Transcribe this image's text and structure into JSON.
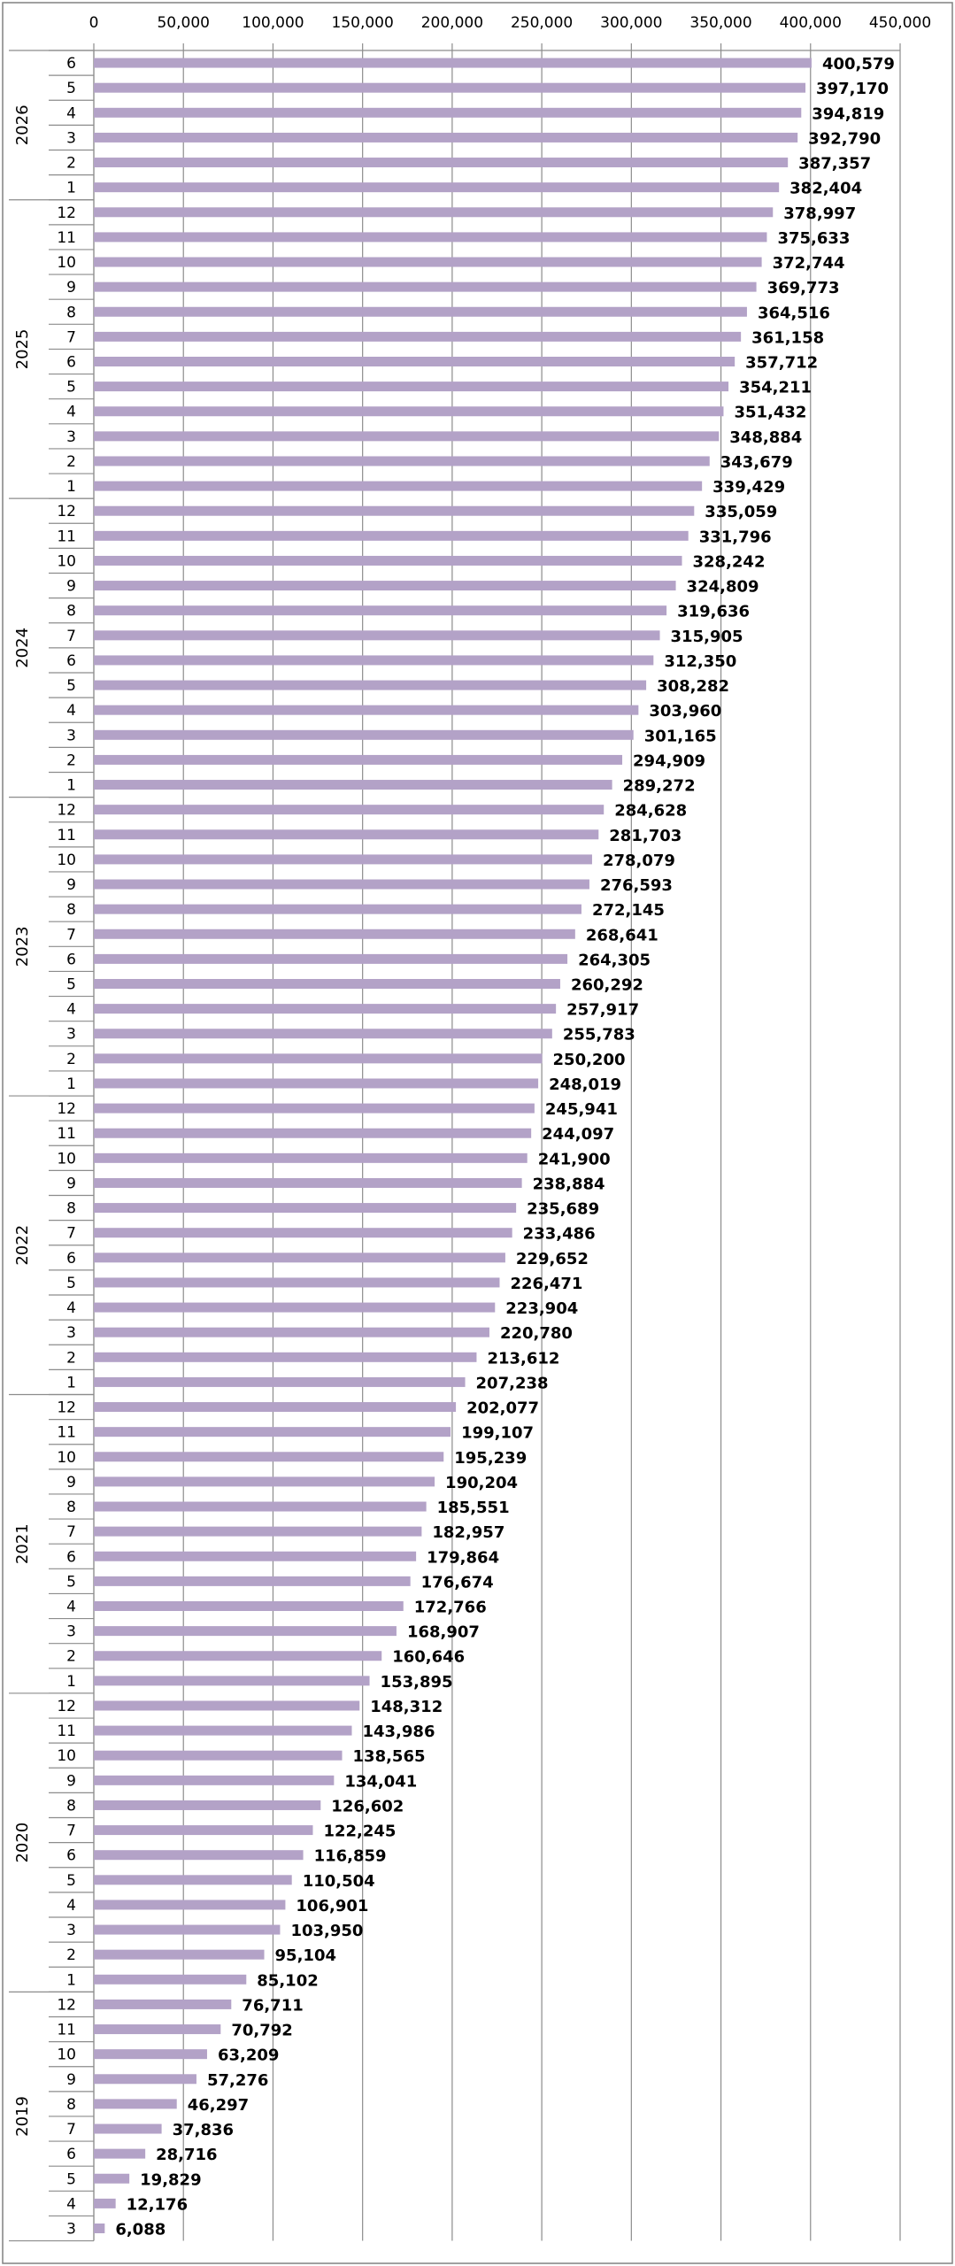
{
  "chart_data": {
    "type": "bar",
    "orientation": "horizontal",
    "title": "",
    "xlabel": "",
    "ylabel": "",
    "xlim": [
      0,
      450000
    ],
    "xticks": [
      0,
      50000,
      100000,
      150000,
      200000,
      250000,
      300000,
      350000,
      400000,
      450000
    ],
    "xtick_labels": [
      "0",
      "50,000",
      "100,000",
      "150,000",
      "200,000",
      "250,000",
      "300,000",
      "350,000",
      "400,000",
      "450,000"
    ],
    "x_axis_position": "top",
    "grid": true,
    "legend": "none",
    "bar_color": "#b3a2c7",
    "groups": [
      {
        "label": "2026",
        "months": [
          "6",
          "5",
          "4",
          "3",
          "2",
          "1"
        ],
        "values": [
          400579,
          397170,
          394819,
          392790,
          387357,
          382404
        ],
        "value_labels": [
          "400,579",
          "397,170",
          "394,819",
          "392,790",
          "387,357",
          "382,404"
        ]
      },
      {
        "label": "2025",
        "months": [
          "12",
          "11",
          "10",
          "9",
          "8",
          "7",
          "6",
          "5",
          "4",
          "3",
          "2",
          "1"
        ],
        "values": [
          378997,
          375633,
          372744,
          369773,
          364516,
          361158,
          357712,
          354211,
          351432,
          348884,
          343679,
          339429
        ],
        "value_labels": [
          "378,997",
          "375,633",
          "372,744",
          "369,773",
          "364,516",
          "361,158",
          "357,712",
          "354,211",
          "351,432",
          "348,884",
          "343,679",
          "339,429"
        ]
      },
      {
        "label": "2024",
        "months": [
          "12",
          "11",
          "10",
          "9",
          "8",
          "7",
          "6",
          "5",
          "4",
          "3",
          "2",
          "1"
        ],
        "values": [
          335059,
          331796,
          328242,
          324809,
          319636,
          315905,
          312350,
          308282,
          303960,
          301165,
          294909,
          289272
        ],
        "value_labels": [
          "335,059",
          "331,796",
          "328,242",
          "324,809",
          "319,636",
          "315,905",
          "312,350",
          "308,282",
          "303,960",
          "301,165",
          "294,909",
          "289,272"
        ]
      },
      {
        "label": "2023",
        "months": [
          "12",
          "11",
          "10",
          "9",
          "8",
          "7",
          "6",
          "5",
          "4",
          "3",
          "2",
          "1"
        ],
        "values": [
          284628,
          281703,
          278079,
          276593,
          272145,
          268641,
          264305,
          260292,
          257917,
          255783,
          250200,
          248019
        ],
        "value_labels": [
          "284,628",
          "281,703",
          "278,079",
          "276,593",
          "272,145",
          "268,641",
          "264,305",
          "260,292",
          "257,917",
          "255,783",
          "250,200",
          "248,019"
        ]
      },
      {
        "label": "2022",
        "months": [
          "12",
          "11",
          "10",
          "9",
          "8",
          "7",
          "6",
          "5",
          "4",
          "3",
          "2",
          "1"
        ],
        "values": [
          245941,
          244097,
          241900,
          238884,
          235689,
          233486,
          229652,
          226471,
          223904,
          220780,
          213612,
          207238
        ],
        "value_labels": [
          "245,941",
          "244,097",
          "241,900",
          "238,884",
          "235,689",
          "233,486",
          "229,652",
          "226,471",
          "223,904",
          "220,780",
          "213,612",
          "207,238"
        ]
      },
      {
        "label": "2021",
        "months": [
          "12",
          "11",
          "10",
          "9",
          "8",
          "7",
          "6",
          "5",
          "4",
          "3",
          "2",
          "1"
        ],
        "values": [
          202077,
          199107,
          195239,
          190204,
          185551,
          182957,
          179864,
          176674,
          172766,
          168907,
          160646,
          153895
        ],
        "value_labels": [
          "202,077",
          "199,107",
          "195,239",
          "190,204",
          "185,551",
          "182,957",
          "179,864",
          "176,674",
          "172,766",
          "168,907",
          "160,646",
          "153,895"
        ]
      },
      {
        "label": "2020",
        "months": [
          "12",
          "11",
          "10",
          "9",
          "8",
          "7",
          "6",
          "5",
          "4",
          "3",
          "2",
          "1"
        ],
        "values": [
          148312,
          143986,
          138565,
          134041,
          126602,
          122245,
          116859,
          110504,
          106901,
          103950,
          95104,
          85102
        ],
        "value_labels": [
          "148,312",
          "143,986",
          "138,565",
          "134,041",
          "126,602",
          "122,245",
          "116,859",
          "110,504",
          "106,901",
          "103,950",
          "95,104",
          "85,102"
        ]
      },
      {
        "label": "2019",
        "months": [
          "12",
          "11",
          "10",
          "9",
          "8",
          "7",
          "6",
          "5",
          "4",
          "3"
        ],
        "values": [
          76711,
          70792,
          63209,
          57276,
          46297,
          37836,
          28716,
          19829,
          12176,
          6088
        ],
        "value_labels": [
          "76,711",
          "70,792",
          "63,209",
          "57,276",
          "46,297",
          "37,836",
          "28,716",
          "19,829",
          "12,176",
          "6,088"
        ]
      }
    ]
  }
}
